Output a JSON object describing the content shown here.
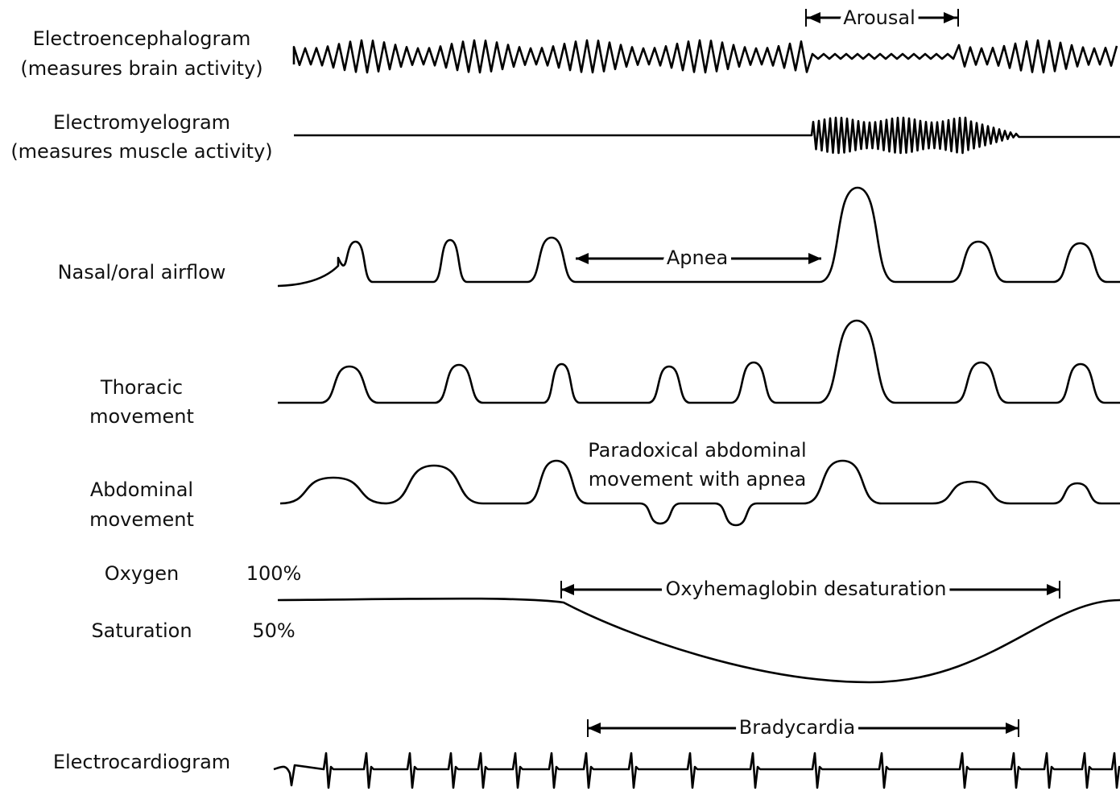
{
  "channels": [
    {
      "label": [
        "Electroencephalogram",
        "(measures brain activity)"
      ]
    },
    {
      "label": [
        "Electromyelogram",
        "(measures muscle activity)"
      ]
    },
    {
      "label": [
        "Nasal/oral airflow"
      ]
    },
    {
      "label": [
        "Thoracic",
        "movement"
      ]
    },
    {
      "label": [
        "Abdominal",
        "movement"
      ]
    },
    {
      "label": [
        "Oxygen",
        "Saturation"
      ]
    },
    {
      "label": [
        "Electrocardiogram"
      ]
    }
  ],
  "oxygen_scale": {
    "high": "100%",
    "low": "50%"
  },
  "annotations": {
    "arousal": "Arousal",
    "apnea": "Apnea",
    "paradoxical": [
      "Paradoxical abdominal",
      "movement with apnea"
    ],
    "desaturation": "Oxyhemaglobin desaturation",
    "bradycardia": "Bradycardia"
  }
}
